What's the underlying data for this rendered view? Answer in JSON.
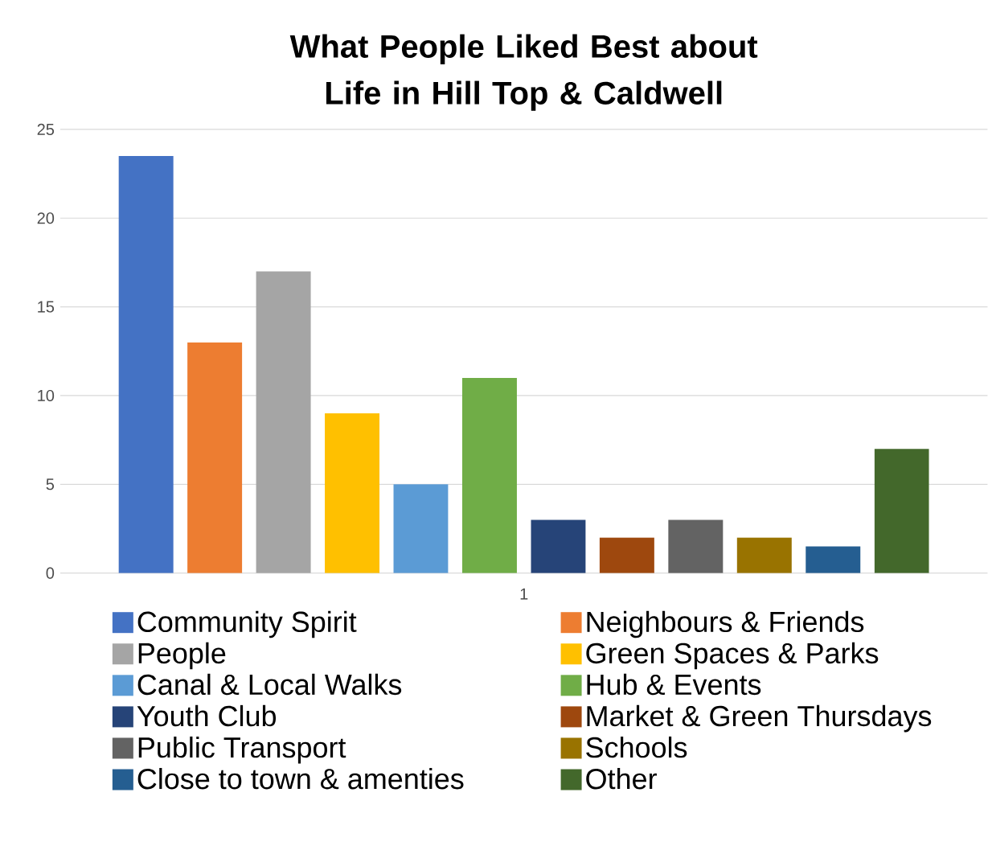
{
  "chart_data": {
    "type": "bar",
    "title": "What People Liked Best about Life in Hill Top & Caldwell",
    "categories": [
      "1"
    ],
    "series": [
      {
        "name": "Community Spirit",
        "color": "#4472c4",
        "values": [
          23.5
        ]
      },
      {
        "name": "Neighbours & Friends",
        "color": "#ed7d31",
        "values": [
          13
        ]
      },
      {
        "name": "People",
        "color": "#a5a5a5",
        "values": [
          17
        ]
      },
      {
        "name": "Green Spaces & Parks",
        "color": "#ffc000",
        "values": [
          9
        ]
      },
      {
        "name": "Canal & Local Walks",
        "color": "#5b9bd5",
        "values": [
          5
        ]
      },
      {
        "name": "Hub & Events",
        "color": "#70ad47",
        "values": [
          11
        ]
      },
      {
        "name": "Youth Club",
        "color": "#264478",
        "values": [
          3
        ]
      },
      {
        "name": "Market & Green Thursdays",
        "color": "#9e480e",
        "values": [
          2
        ]
      },
      {
        "name": "Public Transport",
        "color": "#636363",
        "values": [
          3
        ]
      },
      {
        "name": "Schools",
        "color": "#997300",
        "values": [
          2
        ]
      },
      {
        "name": "Close to town & amenties",
        "color": "#255e91",
        "values": [
          1.5
        ]
      },
      {
        "name": "Other",
        "color": "#43682b",
        "values": [
          7
        ]
      }
    ],
    "ylim": [
      0,
      25
    ],
    "yticks": [
      0,
      5,
      10,
      15,
      20,
      25
    ],
    "grid": "y",
    "legend": "bottom"
  }
}
